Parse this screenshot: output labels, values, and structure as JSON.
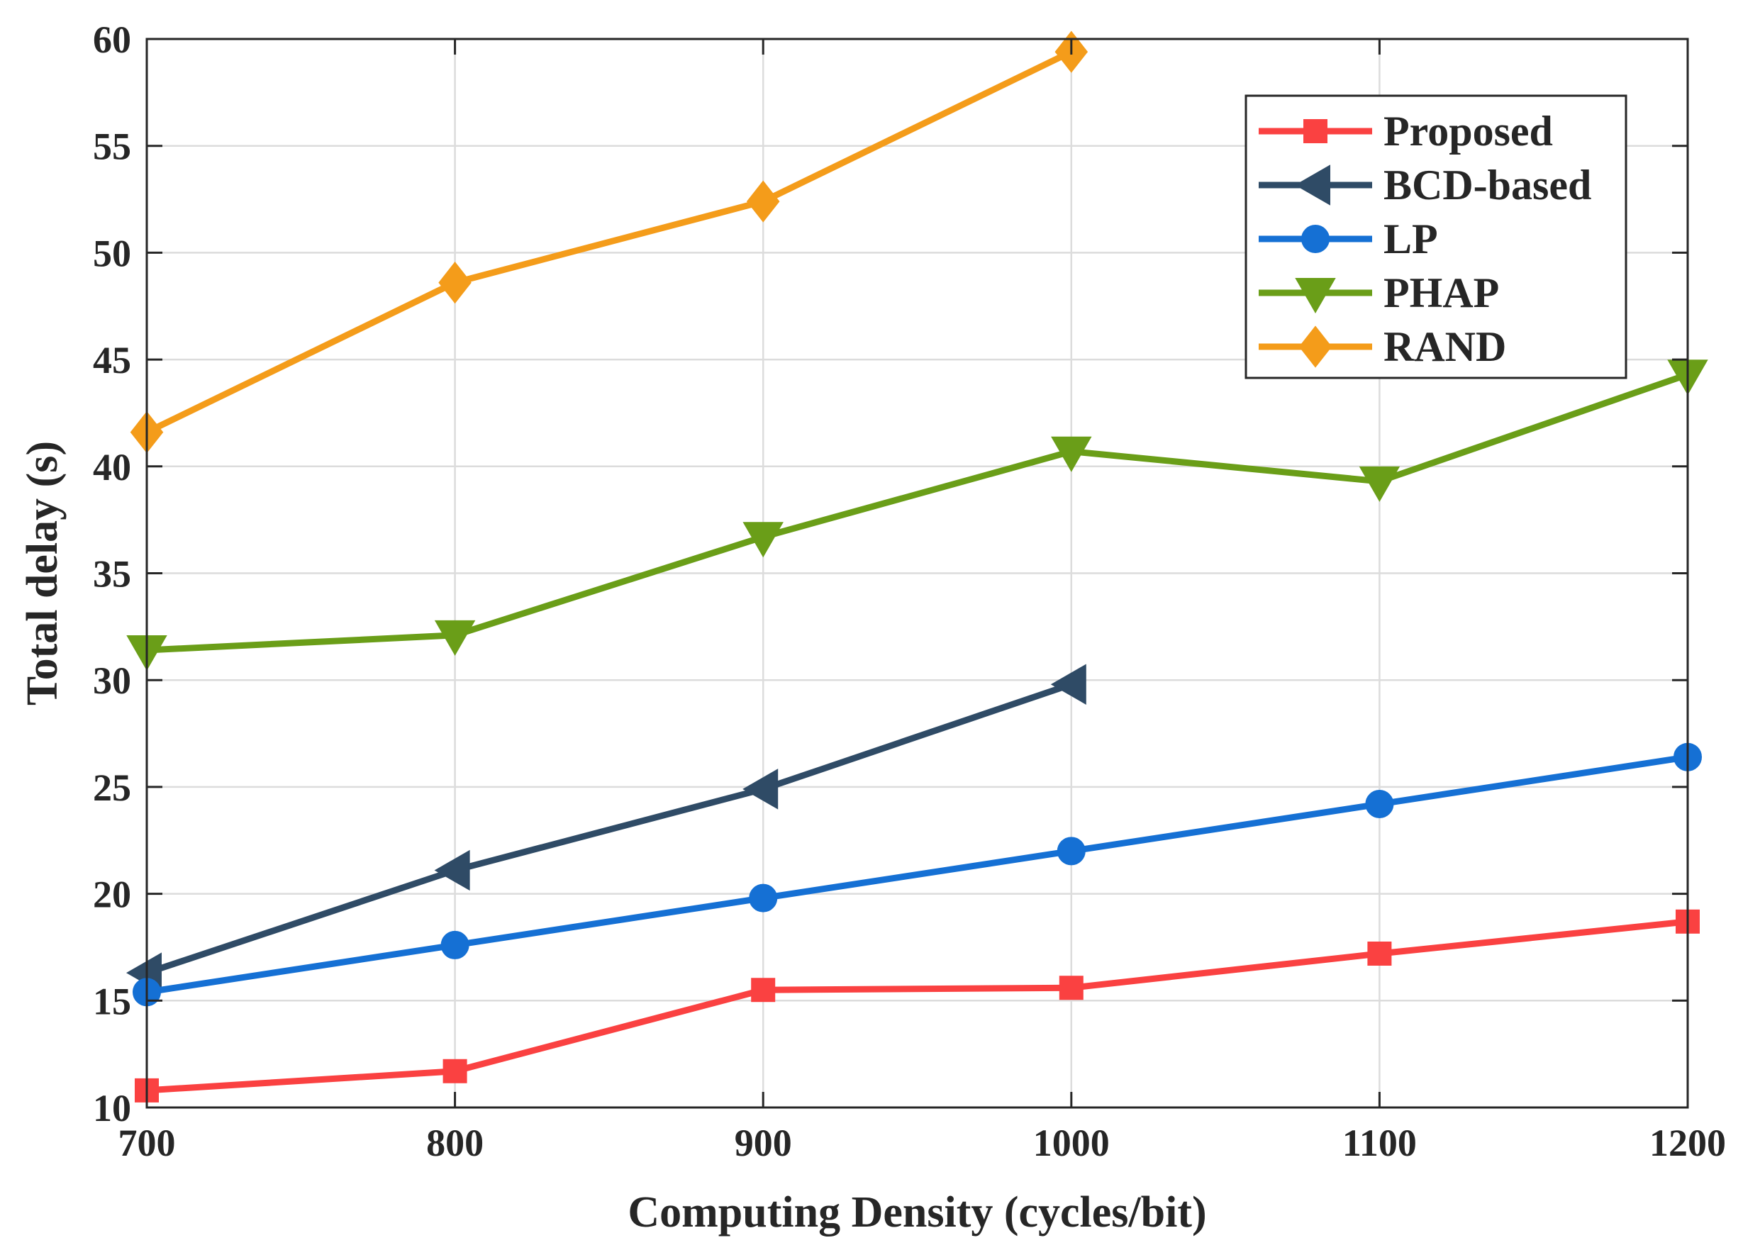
{
  "chart_data": {
    "type": "line",
    "xlabel": "Computing Density (cycles/bit)",
    "ylabel": "Total delay (s)",
    "xlim": [
      700,
      1200
    ],
    "ylim": [
      10,
      60
    ],
    "xticks": [
      700,
      800,
      900,
      1000,
      1100,
      1200
    ],
    "yticks": [
      10,
      15,
      20,
      25,
      30,
      35,
      40,
      45,
      50,
      55,
      60
    ],
    "grid": true,
    "legend_position": "top-right",
    "series": [
      {
        "name": "Proposed",
        "color": "#fa4141",
        "marker": "square",
        "x": [
          700,
          800,
          900,
          1000,
          1100,
          1200
        ],
        "y": [
          10.8,
          11.7,
          15.5,
          15.6,
          17.2,
          18.7
        ]
      },
      {
        "name": "BCD-based",
        "color": "#2f4b66",
        "marker": "triangle-left",
        "x": [
          700,
          800,
          900,
          1000
        ],
        "y": [
          16.3,
          21.1,
          24.9,
          29.8
        ]
      },
      {
        "name": "LP",
        "color": "#1570d4",
        "marker": "circle",
        "x": [
          700,
          800,
          900,
          1000,
          1100,
          1200
        ],
        "y": [
          15.4,
          17.6,
          19.8,
          22.0,
          24.2,
          26.4
        ]
      },
      {
        "name": "PHAP",
        "color": "#6a9e18",
        "marker": "triangle-down",
        "x": [
          700,
          800,
          900,
          1000,
          1100,
          1200
        ],
        "y": [
          31.4,
          32.1,
          36.7,
          40.7,
          39.3,
          44.3
        ]
      },
      {
        "name": "RAND",
        "color": "#f49c1a",
        "marker": "diamond",
        "x": [
          700,
          800,
          900,
          1000
        ],
        "y": [
          41.6,
          48.6,
          52.4,
          59.4
        ]
      }
    ]
  }
}
